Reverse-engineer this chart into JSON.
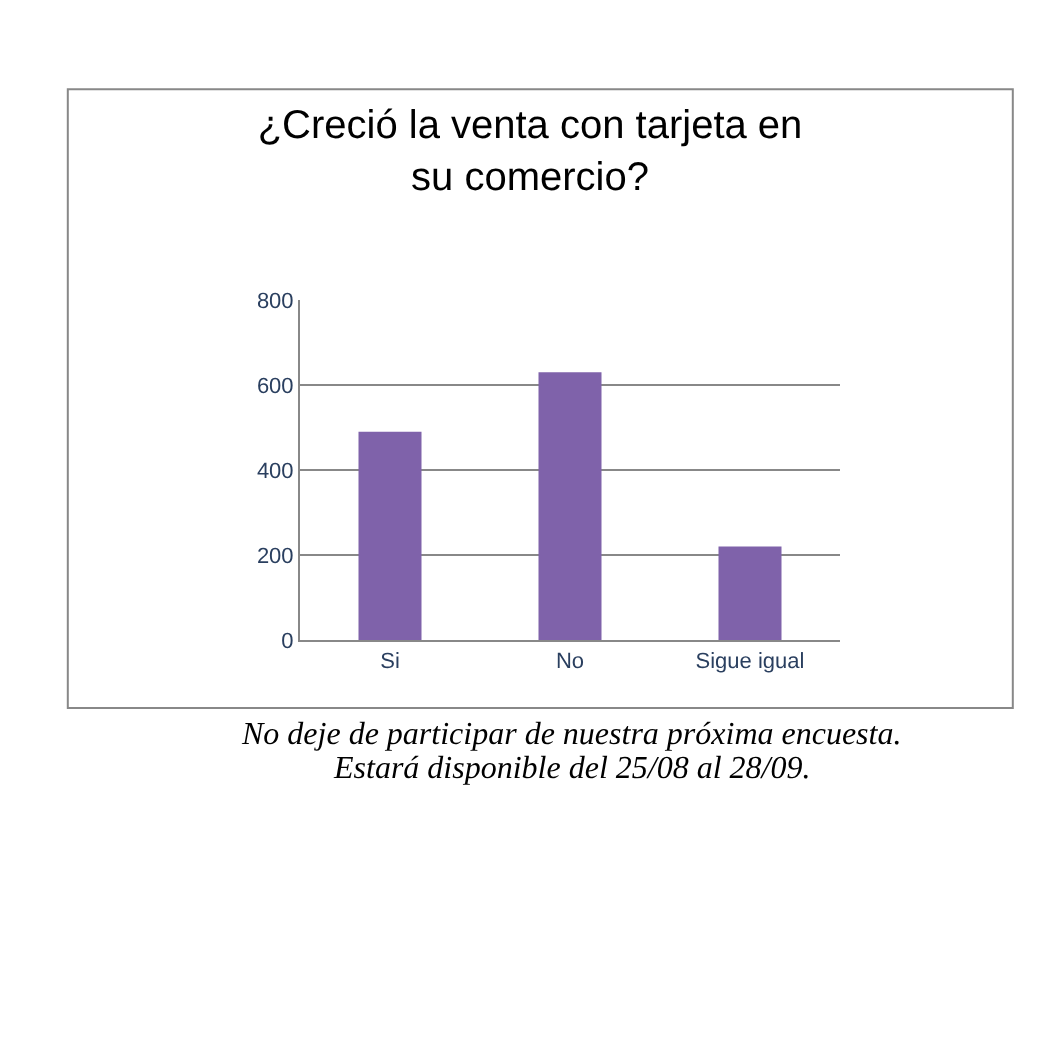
{
  "chart_data": {
    "type": "bar",
    "title": "¿Creció la venta con tarjeta en su comercio?",
    "categories": [
      "Si",
      "No",
      "Sigue igual"
    ],
    "values": [
      490,
      630,
      220
    ],
    "color": "#7f62aa",
    "ylim": [
      0,
      800
    ],
    "yticks": [
      0,
      200,
      400,
      600,
      800
    ],
    "grid": "y",
    "legend": false,
    "annotations": [
      "No deje de participar de nuestra próxima encuesta.",
      "Estará disponible del 25/08 al 28/09."
    ]
  }
}
